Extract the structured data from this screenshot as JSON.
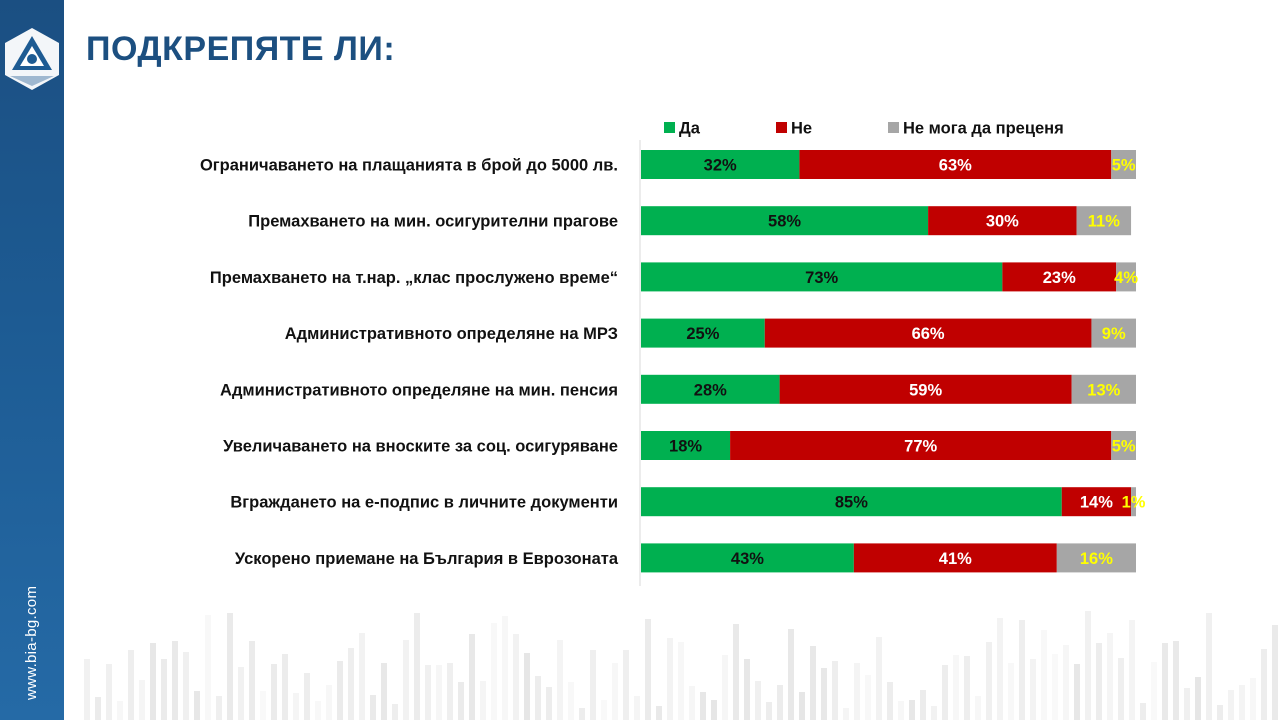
{
  "header": {
    "title": "ПОДКРЕПЯТЕ ЛИ:"
  },
  "sidebar": {
    "website": "www.bia-bg.com",
    "logo_icon": "bia-logo-icon"
  },
  "colors": {
    "yes": "#00b050",
    "no": "#c00000",
    "unsure": "#a6a6a6",
    "yes_label": "#111111",
    "no_label": "#ffffff",
    "unsure_label": "#ffff00",
    "title": "#1c4f80",
    "sidebar": "#1d5b93"
  },
  "chart_data": {
    "type": "bar",
    "orientation": "horizontal",
    "stacked": true,
    "percent": true,
    "title": "ПОДКРЕПЯТЕ ЛИ:",
    "xlim": [
      0,
      100
    ],
    "legend_position": "top",
    "categories": [
      "Ограничаването  на плащанията  в брой до 5000 лв.",
      "Премахването  на мин.  осигурителни прагове",
      "Премахването  на т.нар. „клас прослужено  време“",
      "Административното  определяне на МРЗ",
      "Административното  определяне на мин.  пенсия",
      "Увеличаването  на вноските за соц. осигуряване",
      "Вграждането  на е-подпис в личните документи",
      "Ускорено приемане на България в Еврозоната"
    ],
    "series": [
      {
        "name": "Да",
        "values": [
          32,
          58,
          73,
          25,
          28,
          18,
          85,
          43
        ],
        "labels": [
          "32%",
          "58%",
          "73%",
          "25%",
          "28%",
          "18%",
          "85%",
          "43%"
        ]
      },
      {
        "name": "Не",
        "values": [
          63,
          30,
          23,
          66,
          59,
          77,
          14,
          41
        ],
        "labels": [
          "63%",
          "30%",
          "23%",
          "66%",
          "59%",
          "77%",
          "14%",
          "41%"
        ]
      },
      {
        "name": "Не мога да преценя",
        "values": [
          5,
          11,
          4,
          9,
          13,
          5,
          1,
          16
        ],
        "labels": [
          "5%",
          "11%",
          "4%",
          "9%",
          "13%",
          "5%",
          "1%",
          "16%"
        ]
      }
    ]
  }
}
